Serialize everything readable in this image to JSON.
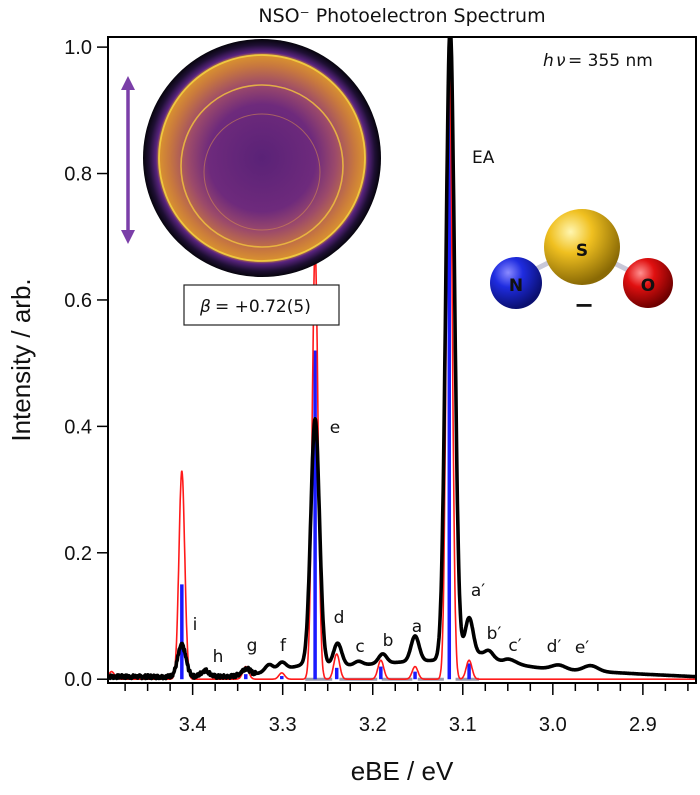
{
  "chart_data": {
    "type": "line",
    "title": "NSO⁻ Photoelectron Spectrum",
    "xlabel": "eBE / eV",
    "ylabel": "Intensity / arb.",
    "xlim": [
      3.494,
      2.841
    ],
    "ylim": [
      -0.006,
      1.016
    ],
    "x_reversed": true,
    "grid": false,
    "xticks": [
      "3.4",
      "3.3",
      "3.2",
      "3.1",
      "3.0",
      "2.9"
    ],
    "yticks": [
      "0.0",
      "0.2",
      "0.4",
      "0.6",
      "0.8",
      "1.0"
    ],
    "colors": {
      "experiment": "#000000",
      "simulation": "#ff1a1a",
      "sticks": "#1a1aff",
      "baseline_sticks": "#9a9aae",
      "arrow": "#7b3fa8"
    },
    "experiment_peaks": [
      {
        "label": "i",
        "eBE": 3.412,
        "intensity": 0.05
      },
      {
        "label": "h",
        "eBE": 3.386,
        "intensity": 0.01
      },
      {
        "label": "g",
        "eBE": 3.341,
        "intensity": 0.01
      },
      {
        "label": "",
        "eBE": 3.315,
        "intensity": 0.012
      },
      {
        "label": "f",
        "eBE": 3.301,
        "intensity": 0.012
      },
      {
        "label": "e",
        "eBE": 3.264,
        "intensity": 0.39
      },
      {
        "label": "d",
        "eBE": 3.239,
        "intensity": 0.035
      },
      {
        "label": "c",
        "eBE": 3.216,
        "intensity": 0.006
      },
      {
        "label": "b",
        "eBE": 3.189,
        "intensity": 0.015
      },
      {
        "label": "a",
        "eBE": 3.153,
        "intensity": 0.04
      },
      {
        "label": "EA",
        "eBE": 3.114,
        "intensity": 1.0
      },
      {
        "label": "a′",
        "eBE": 3.093,
        "intensity": 0.06
      },
      {
        "label": "b′",
        "eBE": 3.071,
        "intensity": 0.01
      },
      {
        "label": "c′",
        "eBE": 3.049,
        "intensity": 0.007
      },
      {
        "label": "d′",
        "eBE": 2.994,
        "intensity": 0.008
      },
      {
        "label": "e′",
        "eBE": 2.958,
        "intensity": 0.009
      }
    ],
    "experiment_background": [
      [
        3.494,
        0.004
      ],
      [
        3.36,
        0.004
      ],
      [
        3.31,
        0.012
      ],
      [
        3.28,
        0.022
      ],
      [
        3.22,
        0.022
      ],
      [
        3.16,
        0.028
      ],
      [
        3.13,
        0.03
      ],
      [
        3.08,
        0.04
      ],
      [
        3.05,
        0.025
      ],
      [
        3.0,
        0.015
      ],
      [
        2.95,
        0.012
      ],
      [
        2.9,
        0.008
      ],
      [
        2.841,
        0.004
      ]
    ],
    "simulation_peaks": [
      {
        "eBE": 3.49,
        "intensity": 0.012
      },
      {
        "eBE": 3.412,
        "intensity": 0.33
      },
      {
        "eBE": 3.341,
        "intensity": 0.02
      },
      {
        "eBE": 3.301,
        "intensity": 0.01
      },
      {
        "eBE": 3.264,
        "intensity": 0.68
      },
      {
        "eBE": 3.24,
        "intensity": 0.04
      },
      {
        "eBE": 3.191,
        "intensity": 0.03
      },
      {
        "eBE": 3.153,
        "intensity": 0.02
      },
      {
        "eBE": 3.115,
        "intensity": 1.0
      },
      {
        "eBE": 3.093,
        "intensity": 0.03
      }
    ],
    "sticks": [
      {
        "eBE": 3.412,
        "intensity": 0.15
      },
      {
        "eBE": 3.341,
        "intensity": 0.008
      },
      {
        "eBE": 3.301,
        "intensity": 0.005
      },
      {
        "eBE": 3.264,
        "intensity": 0.52
      },
      {
        "eBE": 3.24,
        "intensity": 0.018
      },
      {
        "eBE": 3.191,
        "intensity": 0.02
      },
      {
        "eBE": 3.153,
        "intensity": 0.012
      },
      {
        "eBE": 3.115,
        "intensity": 0.98
      },
      {
        "eBE": 3.093,
        "intensity": 0.025
      }
    ],
    "baseline_sticks": [
      [
        3.275,
        3.245
      ],
      [
        3.237,
        3.195
      ],
      [
        3.19,
        3.156
      ],
      [
        3.15,
        3.121
      ],
      [
        3.108,
        3.082
      ]
    ],
    "annotations": {
      "photon_h": "h",
      "photon_nu": "ν",
      "photon_energy": "= 355 nm",
      "beta_symbol": "β",
      "beta_value": "= +0.72(5)",
      "ea_label": "EA",
      "molecule_atoms": [
        "N",
        "S",
        "O"
      ],
      "molecule_charge": "−"
    }
  }
}
